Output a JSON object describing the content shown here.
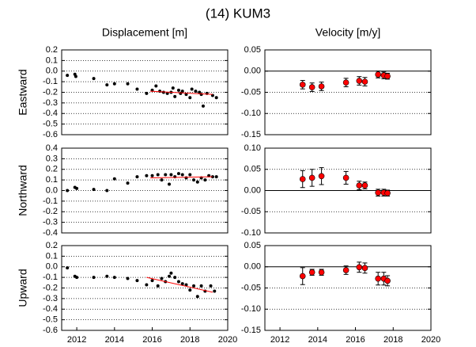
{
  "title": "(14) KUM3",
  "chart_data": [
    {
      "type": "scatter",
      "title": "Displacement [m]",
      "ylabel": "Eastward",
      "color": "#000000",
      "x": [
        2011.5,
        2011.9,
        2011.95,
        2012.9,
        2013.6,
        2014.0,
        2014.7,
        2015.2,
        2015.7,
        2016.0,
        2016.2,
        2016.4,
        2016.6,
        2016.8,
        2017.0,
        2017.1,
        2017.2,
        2017.4,
        2017.5,
        2017.6,
        2017.8,
        2018.0,
        2018.1,
        2018.3,
        2018.5,
        2018.6,
        2018.7,
        2018.9,
        2019.2,
        2019.4
      ],
      "values": [
        -0.04,
        -0.03,
        -0.05,
        -0.07,
        -0.13,
        -0.12,
        -0.12,
        -0.17,
        -0.21,
        -0.18,
        -0.14,
        -0.19,
        -0.2,
        -0.21,
        -0.2,
        -0.16,
        -0.24,
        -0.18,
        -0.21,
        -0.19,
        -0.22,
        -0.25,
        -0.17,
        -0.19,
        -0.2,
        -0.22,
        -0.33,
        -0.21,
        -0.23,
        -0.25
      ],
      "trend": {
        "x": [
          2015.9,
          2019.2
        ],
        "values": [
          -0.19,
          -0.22
        ],
        "color": "#ff0000"
      },
      "xlim": [
        2011.2,
        2020
      ],
      "ylim": [
        -0.6,
        0.2
      ],
      "yticks": [
        0.2,
        0.1,
        {
          "value": 0,
          "label": "0.0"
        },
        -0.1,
        -0.2,
        -0.3,
        -0.4,
        -0.5,
        -0.6
      ],
      "grid": true
    },
    {
      "type": "errorbar",
      "title": "Velocity [m/y]",
      "color": "#ff0000",
      "zero_line": true,
      "x": [
        2013.2,
        2013.7,
        2014.2,
        2015.5,
        2016.2,
        2016.5,
        2017.2,
        2017.5,
        2017.7
      ],
      "values": [
        -0.032,
        -0.038,
        -0.036,
        -0.027,
        -0.023,
        -0.025,
        -0.008,
        -0.01,
        -0.012
      ],
      "errors": [
        0.01,
        0.01,
        0.01,
        0.01,
        0.01,
        0.01,
        0.008,
        0.008,
        0.007
      ],
      "xlim": [
        2011.2,
        2020
      ],
      "ylim": [
        -0.15,
        0.05
      ],
      "yticks": [
        0.05,
        {
          "value": 0,
          "label": "0.00"
        },
        -0.05,
        {
          "value": -0.1,
          "label": "-0.10"
        },
        -0.15
      ],
      "grid": true
    },
    {
      "type": "scatter",
      "ylabel": "Northward",
      "color": "#000000",
      "x": [
        2011.5,
        2011.9,
        2012.0,
        2012.9,
        2013.6,
        2014.0,
        2014.7,
        2015.2,
        2015.7,
        2016.0,
        2016.3,
        2016.5,
        2016.7,
        2016.9,
        2017.0,
        2017.2,
        2017.4,
        2017.6,
        2017.8,
        2018.0,
        2018.2,
        2018.4,
        2018.6,
        2018.8,
        2019.0,
        2019.2,
        2019.4
      ],
      "values": [
        0.0,
        0.03,
        0.02,
        0.01,
        0.0,
        0.11,
        0.07,
        0.13,
        0.14,
        0.14,
        0.15,
        0.1,
        0.15,
        0.06,
        0.15,
        0.13,
        0.16,
        0.15,
        0.12,
        0.15,
        0.1,
        0.08,
        0.12,
        0.1,
        0.14,
        0.13,
        0.13
      ],
      "trend": {
        "x": [
          2015.9,
          2019.2
        ],
        "values": [
          0.12,
          0.13
        ],
        "color": "#ff0000"
      },
      "xlim": [
        2011.2,
        2020
      ],
      "ylim": [
        -0.4,
        0.4
      ],
      "yticks": [
        0.4,
        0.3,
        0.2,
        0.1,
        {
          "value": 0,
          "label": "0.0"
        },
        -0.1,
        -0.2,
        -0.3,
        -0.4
      ],
      "grid": true
    },
    {
      "type": "errorbar",
      "color": "#ff0000",
      "zero_line": true,
      "x": [
        2013.2,
        2013.7,
        2014.2,
        2015.5,
        2016.2,
        2016.5,
        2017.2,
        2017.5,
        2017.7
      ],
      "values": [
        0.027,
        0.03,
        0.034,
        0.03,
        0.012,
        0.012,
        -0.005,
        -0.005,
        -0.006
      ],
      "errors": [
        0.02,
        0.02,
        0.02,
        0.015,
        0.01,
        0.008,
        0.008,
        0.008,
        0.007
      ],
      "xlim": [
        2011.2,
        2020
      ],
      "ylim": [
        -0.1,
        0.1
      ],
      "yticks": [
        {
          "value": 0.1,
          "label": "0.10"
        },
        0.05,
        {
          "value": 0,
          "label": "0.00"
        },
        -0.05,
        {
          "value": -0.1,
          "label": "-0.10"
        }
      ],
      "grid": true
    },
    {
      "type": "scatter",
      "ylabel": "Upward",
      "color": "#000000",
      "x": [
        2011.5,
        2011.9,
        2012.0,
        2012.9,
        2013.6,
        2014.0,
        2014.7,
        2015.2,
        2015.7,
        2016.0,
        2016.3,
        2016.5,
        2016.7,
        2016.9,
        2017.0,
        2017.2,
        2017.4,
        2017.6,
        2017.8,
        2018.0,
        2018.2,
        2018.4,
        2018.6,
        2018.8,
        2019.1,
        2019.3
      ],
      "values": [
        -0.01,
        -0.09,
        -0.1,
        -0.1,
        -0.09,
        -0.1,
        -0.11,
        -0.13,
        -0.17,
        -0.13,
        -0.18,
        -0.11,
        -0.14,
        -0.09,
        -0.06,
        -0.1,
        -0.14,
        -0.16,
        -0.17,
        -0.22,
        -0.18,
        -0.28,
        -0.18,
        -0.23,
        -0.18,
        -0.23
      ],
      "trend": {
        "x": [
          2015.7,
          2019.2
        ],
        "values": [
          -0.1,
          -0.24
        ],
        "color": "#ff0000"
      },
      "xlim": [
        2011.2,
        2020
      ],
      "ylim": [
        -0.6,
        0.2
      ],
      "xticks": [
        2012,
        2014,
        2016,
        2018,
        2020
      ],
      "yticks": [
        0.2,
        0.1,
        {
          "value": 0,
          "label": "0.0"
        },
        -0.1,
        -0.2,
        -0.3,
        -0.4,
        -0.5,
        -0.6
      ],
      "grid": true
    },
    {
      "type": "errorbar",
      "color": "#ff0000",
      "zero_line": true,
      "x": [
        2013.2,
        2013.7,
        2014.2,
        2015.5,
        2016.2,
        2016.5,
        2017.2,
        2017.5,
        2017.7
      ],
      "values": [
        -0.022,
        -0.013,
        -0.013,
        -0.008,
        -0.001,
        -0.003,
        -0.028,
        -0.028,
        -0.033
      ],
      "errors": [
        0.02,
        0.007,
        0.007,
        0.01,
        0.012,
        0.012,
        0.015,
        0.015,
        0.012
      ],
      "xlim": [
        2011.2,
        2020
      ],
      "ylim": [
        -0.15,
        0.05
      ],
      "xticks": [
        2012,
        2014,
        2016,
        2018,
        2020
      ],
      "yticks": [
        0.05,
        {
          "value": 0,
          "label": "0.00"
        },
        -0.05,
        {
          "value": -0.1,
          "label": "-0.10"
        },
        -0.15
      ],
      "grid": true
    }
  ]
}
